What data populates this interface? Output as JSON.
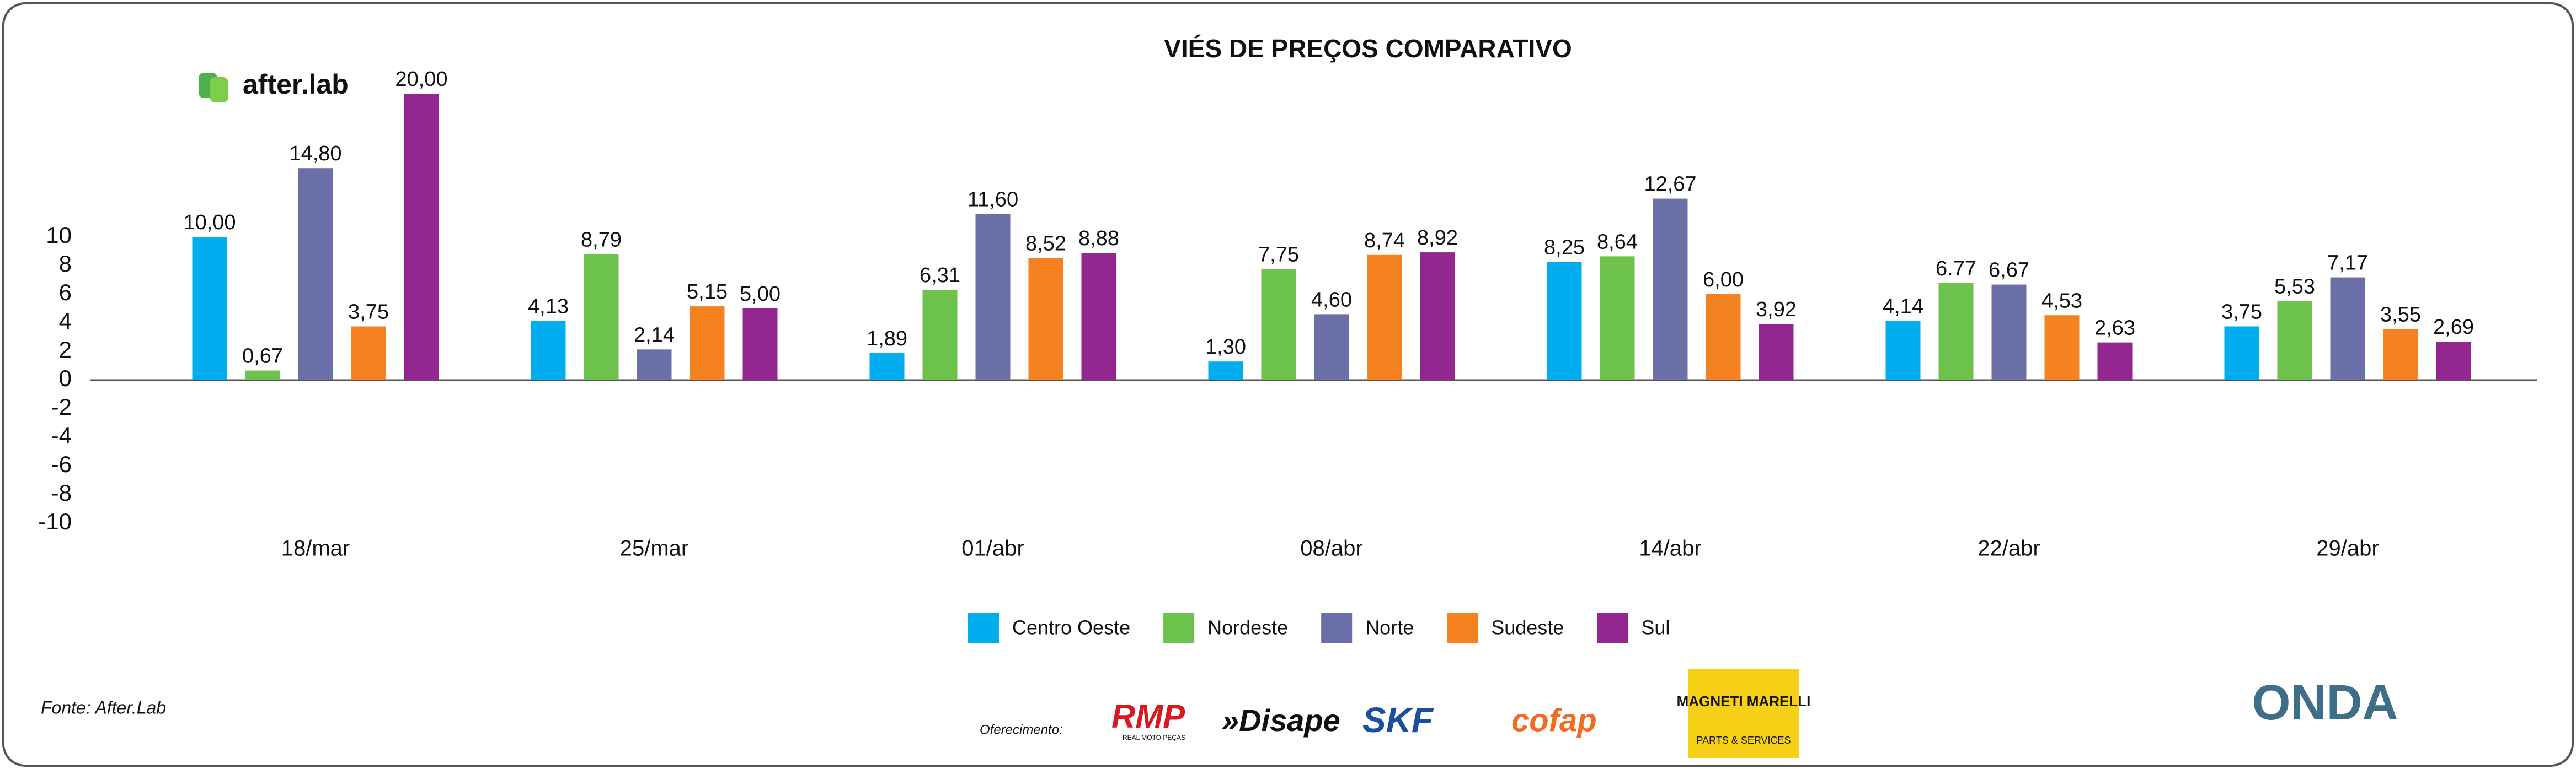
{
  "chart_data": {
    "type": "bar",
    "title": "VIÉS DE PREÇOS COMPARATIVO",
    "categories": [
      "18/mar",
      "25/mar",
      "01/abr",
      "08/abr",
      "14/abr",
      "22/abr",
      "29/abr"
    ],
    "series": [
      {
        "name": "Centro Oeste",
        "color": "#00aeef",
        "values": [
          10.0,
          4.13,
          1.89,
          1.3,
          8.25,
          4.14,
          3.75
        ],
        "value_labels": [
          "10,00",
          "4,13",
          "1,89",
          "1,30",
          "8,25",
          "4,14",
          "3,75"
        ]
      },
      {
        "name": "Nordeste",
        "color": "#6cc24a",
        "values": [
          0.67,
          8.79,
          6.31,
          7.75,
          8.64,
          6.77,
          5.53
        ],
        "value_labels": [
          "0,67",
          "8,79",
          "6,31",
          "7,75",
          "8,64",
          "6.77",
          "5,53"
        ]
      },
      {
        "name": "Norte",
        "color": "#6a6fa8",
        "values": [
          14.8,
          2.14,
          11.6,
          4.6,
          12.67,
          6.67,
          7.17
        ],
        "value_labels": [
          "14,80",
          "2,14",
          "11,60",
          "4,60",
          "12,67",
          "6,67",
          "7,17"
        ]
      },
      {
        "name": "Sudeste",
        "color": "#f58220",
        "values": [
          3.75,
          5.15,
          8.52,
          8.74,
          6.0,
          4.53,
          3.55
        ],
        "value_labels": [
          "3,75",
          "5,15",
          "8,52",
          "8,74",
          "6,00",
          "4,53",
          "3,55"
        ]
      },
      {
        "name": "Sul",
        "color": "#92278f",
        "values": [
          20.0,
          5.0,
          8.88,
          8.92,
          3.92,
          2.63,
          2.69
        ],
        "value_labels": [
          "20,00",
          "5,00",
          "8,88",
          "8,92",
          "3,92",
          "2,63",
          "2,69"
        ]
      }
    ],
    "ylim": [
      -10,
      10
    ],
    "yticks": [
      -10,
      -8,
      -6,
      -4,
      -2,
      0,
      2,
      4,
      6,
      8,
      10
    ],
    "grid": false,
    "legend": "bottom"
  },
  "logo": "after.lab",
  "source": "Fonte: After.Lab",
  "sponsors_label": "Oferecimento:",
  "sponsors": [
    "RMP",
    "REAL MOTO PEÇAS",
    "»Disape",
    "SKF",
    "cofap",
    "MAGNETI MARELLI",
    "PARTS & SERVICES",
    "ONDA"
  ]
}
